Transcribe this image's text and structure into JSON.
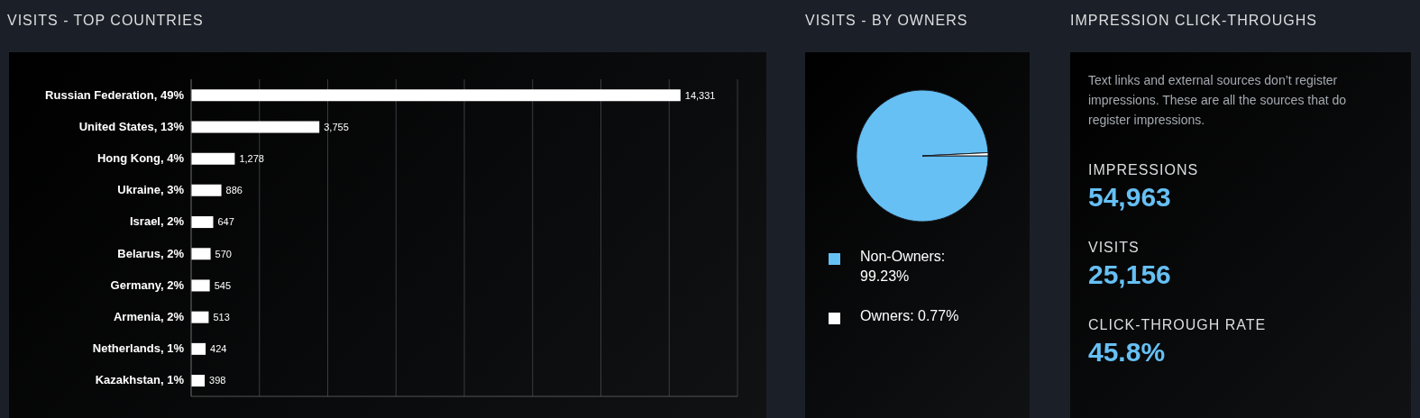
{
  "chart_data": [
    {
      "type": "bar",
      "orientation": "horizontal",
      "title": "VISITS - TOP COUNTRIES",
      "categories": [
        "Russian Federation, 49%",
        "United States, 13%",
        "Hong Kong, 4%",
        "Ukraine, 3%",
        "Israel, 2%",
        "Belarus, 2%",
        "Germany, 2%",
        "Armenia, 2%",
        "Netherlands, 1%",
        "Kazakhstan, 1%"
      ],
      "values": [
        14331,
        3755,
        1278,
        886,
        647,
        570,
        545,
        513,
        424,
        398
      ],
      "color": "#ffffff",
      "value_labels": [
        "14,331",
        "3,755",
        "1,278",
        "886",
        "647",
        "570",
        "545",
        "513",
        "424",
        "398"
      ],
      "grid": "x",
      "tick_labels": "y"
    },
    {
      "type": "pie",
      "title": "VISITS - BY OWNERS",
      "categories": [
        "Non-Owners: 99.23%",
        "Owners: 0.77%"
      ],
      "values": [
        99.23,
        0.77
      ],
      "colors": [
        "#66c0f4",
        "#ffffff"
      ],
      "legend": "bottom"
    },
    {
      "type": "other",
      "title": "IMPRESSION CLICK-THROUGHS",
      "subtitle": "Text links and external sources don’t register impressions. These are all the sources that do register impressions.",
      "annotations": [
        "IMPRESSIONS",
        "54,963",
        "VISITS",
        "25,156",
        "CLICK-THROUGH RATE",
        "45.8%"
      ]
    }
  ]
}
